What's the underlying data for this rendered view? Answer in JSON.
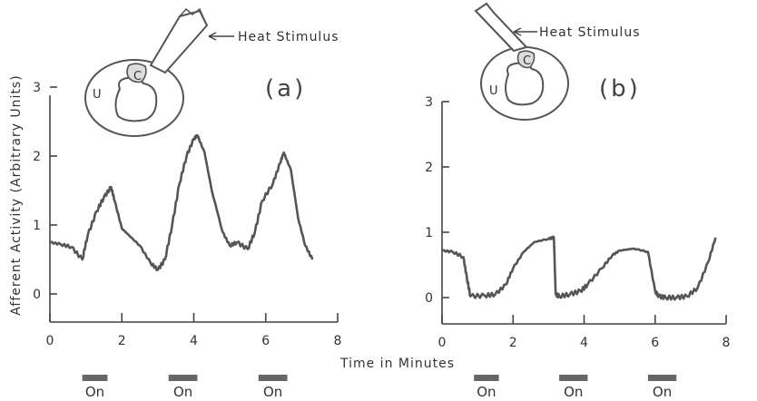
{
  "chart_data": [
    {
      "type": "line",
      "panel_label": "(a)",
      "stimulus_label": "Heat Stimulus",
      "region_labels": [
        "U",
        "C"
      ],
      "xlim": [
        0,
        8
      ],
      "ylim": [
        0,
        3
      ],
      "x_ticks": [
        0,
        2,
        4,
        6,
        8
      ],
      "y_ticks": [
        0,
        1,
        2,
        3
      ],
      "series": [
        {
          "x": [
            0,
            0.3,
            0.6,
            0.9,
            1.05,
            1.3,
            1.5,
            1.7,
            1.8,
            2.0,
            2.2,
            2.5,
            2.8,
            3.0,
            3.2,
            3.4,
            3.6,
            3.8,
            4.0,
            4.1,
            4.3,
            4.5,
            4.8,
            5.0,
            5.2,
            5.5,
            5.7,
            5.9,
            6.2,
            6.4,
            6.5,
            6.7,
            6.9,
            7.1,
            7.3
          ],
          "y": [
            0.75,
            0.72,
            0.68,
            0.5,
            0.85,
            1.2,
            1.4,
            1.55,
            1.35,
            0.95,
            0.85,
            0.7,
            0.45,
            0.35,
            0.5,
            1.0,
            1.6,
            2.0,
            2.25,
            2.3,
            2.05,
            1.5,
            0.9,
            0.7,
            0.75,
            0.65,
            0.9,
            1.35,
            1.6,
            1.9,
            2.05,
            1.8,
            1.1,
            0.7,
            0.5
          ]
        }
      ],
      "stimulus_on_periods": [
        [
          0.9,
          1.6
        ],
        [
          3.3,
          4.1
        ],
        [
          5.8,
          6.6
        ]
      ]
    },
    {
      "type": "line",
      "panel_label": "(b)",
      "stimulus_label": "Heat Stimulus",
      "region_labels": [
        "U",
        "C"
      ],
      "xlim": [
        0,
        8
      ],
      "ylim": [
        0,
        3
      ],
      "x_ticks": [
        0,
        2,
        4,
        6,
        8
      ],
      "y_ticks": [
        0,
        1,
        2,
        3
      ],
      "series": [
        {
          "x": [
            0,
            0.3,
            0.6,
            0.7,
            0.8,
            1.2,
            1.5,
            1.8,
            2.0,
            2.3,
            2.6,
            3.0,
            3.15,
            3.2,
            3.3,
            3.6,
            3.9,
            4.1,
            4.5,
            4.8,
            5.0,
            5.4,
            5.8,
            6.0,
            6.1,
            6.3,
            6.6,
            6.9,
            7.2,
            7.5,
            7.7
          ],
          "y": [
            0.72,
            0.7,
            0.62,
            0.3,
            0.02,
            0.03,
            0.05,
            0.2,
            0.45,
            0.7,
            0.85,
            0.9,
            0.92,
            0.05,
            0.02,
            0.05,
            0.1,
            0.2,
            0.45,
            0.65,
            0.72,
            0.75,
            0.7,
            0.1,
            0.02,
            0.0,
            0.0,
            0.02,
            0.15,
            0.55,
            0.92
          ]
        }
      ],
      "stimulus_on_periods": [
        [
          0.9,
          1.6
        ],
        [
          3.3,
          4.1
        ],
        [
          5.8,
          6.6
        ]
      ]
    }
  ],
  "ylabel": "Afferent Activity (Arbitrary Units)",
  "xlabel": "Time in Minutes",
  "on_label": "On"
}
